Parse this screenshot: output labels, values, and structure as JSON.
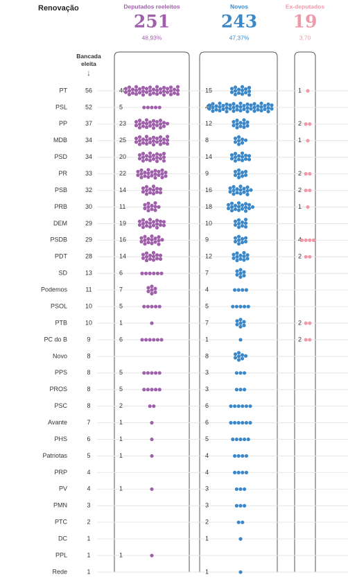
{
  "chart_data": {
    "type": "beeswarm-table",
    "title": "Renovação",
    "total_label": "Bancada eleita",
    "categories": [
      "PT",
      "PSL",
      "PP",
      "MDB",
      "PSD",
      "PR",
      "PSB",
      "PRB",
      "DEM",
      "PSDB",
      "PDT",
      "SD",
      "Podemos",
      "PSOL",
      "PTB",
      "PC do B",
      "Novo",
      "PPS",
      "PROS",
      "PSC",
      "Avante",
      "PHS",
      "Patriotas",
      "PRP",
      "PV",
      "PMN",
      "PTC",
      "DC",
      "PPL",
      "Rede"
    ],
    "totals": [
      56,
      52,
      37,
      34,
      34,
      33,
      32,
      30,
      29,
      29,
      28,
      13,
      11,
      10,
      10,
      9,
      8,
      8,
      8,
      8,
      7,
      6,
      5,
      4,
      4,
      3,
      2,
      1,
      1,
      1
    ],
    "series": [
      {
        "name": "Deputados reeleitos",
        "color": "#a05fab",
        "total": 251,
        "share_label": "48,93%",
        "values": [
          40,
          5,
          23,
          25,
          20,
          22,
          14,
          11,
          19,
          16,
          14,
          6,
          7,
          5,
          1,
          6,
          null,
          5,
          5,
          2,
          1,
          1,
          1,
          null,
          1,
          null,
          null,
          null,
          1,
          null
        ]
      },
      {
        "name": "Novos",
        "color": "#3a88c9",
        "total": 243,
        "share_label": "47,37%",
        "values": [
          15,
          47,
          12,
          8,
          14,
          9,
          16,
          18,
          10,
          9,
          12,
          7,
          4,
          5,
          7,
          1,
          8,
          3,
          3,
          6,
          6,
          5,
          4,
          4,
          3,
          3,
          2,
          1,
          null,
          1
        ]
      },
      {
        "name": "Ex-deputados",
        "color": "#f09aa9",
        "total": 19,
        "share_label": "3,70",
        "values": [
          1,
          null,
          2,
          1,
          null,
          2,
          2,
          1,
          null,
          4,
          2,
          null,
          null,
          null,
          2,
          2,
          null,
          null,
          null,
          null,
          null,
          null,
          null,
          null,
          null,
          null,
          null,
          null,
          null,
          null
        ]
      }
    ]
  }
}
